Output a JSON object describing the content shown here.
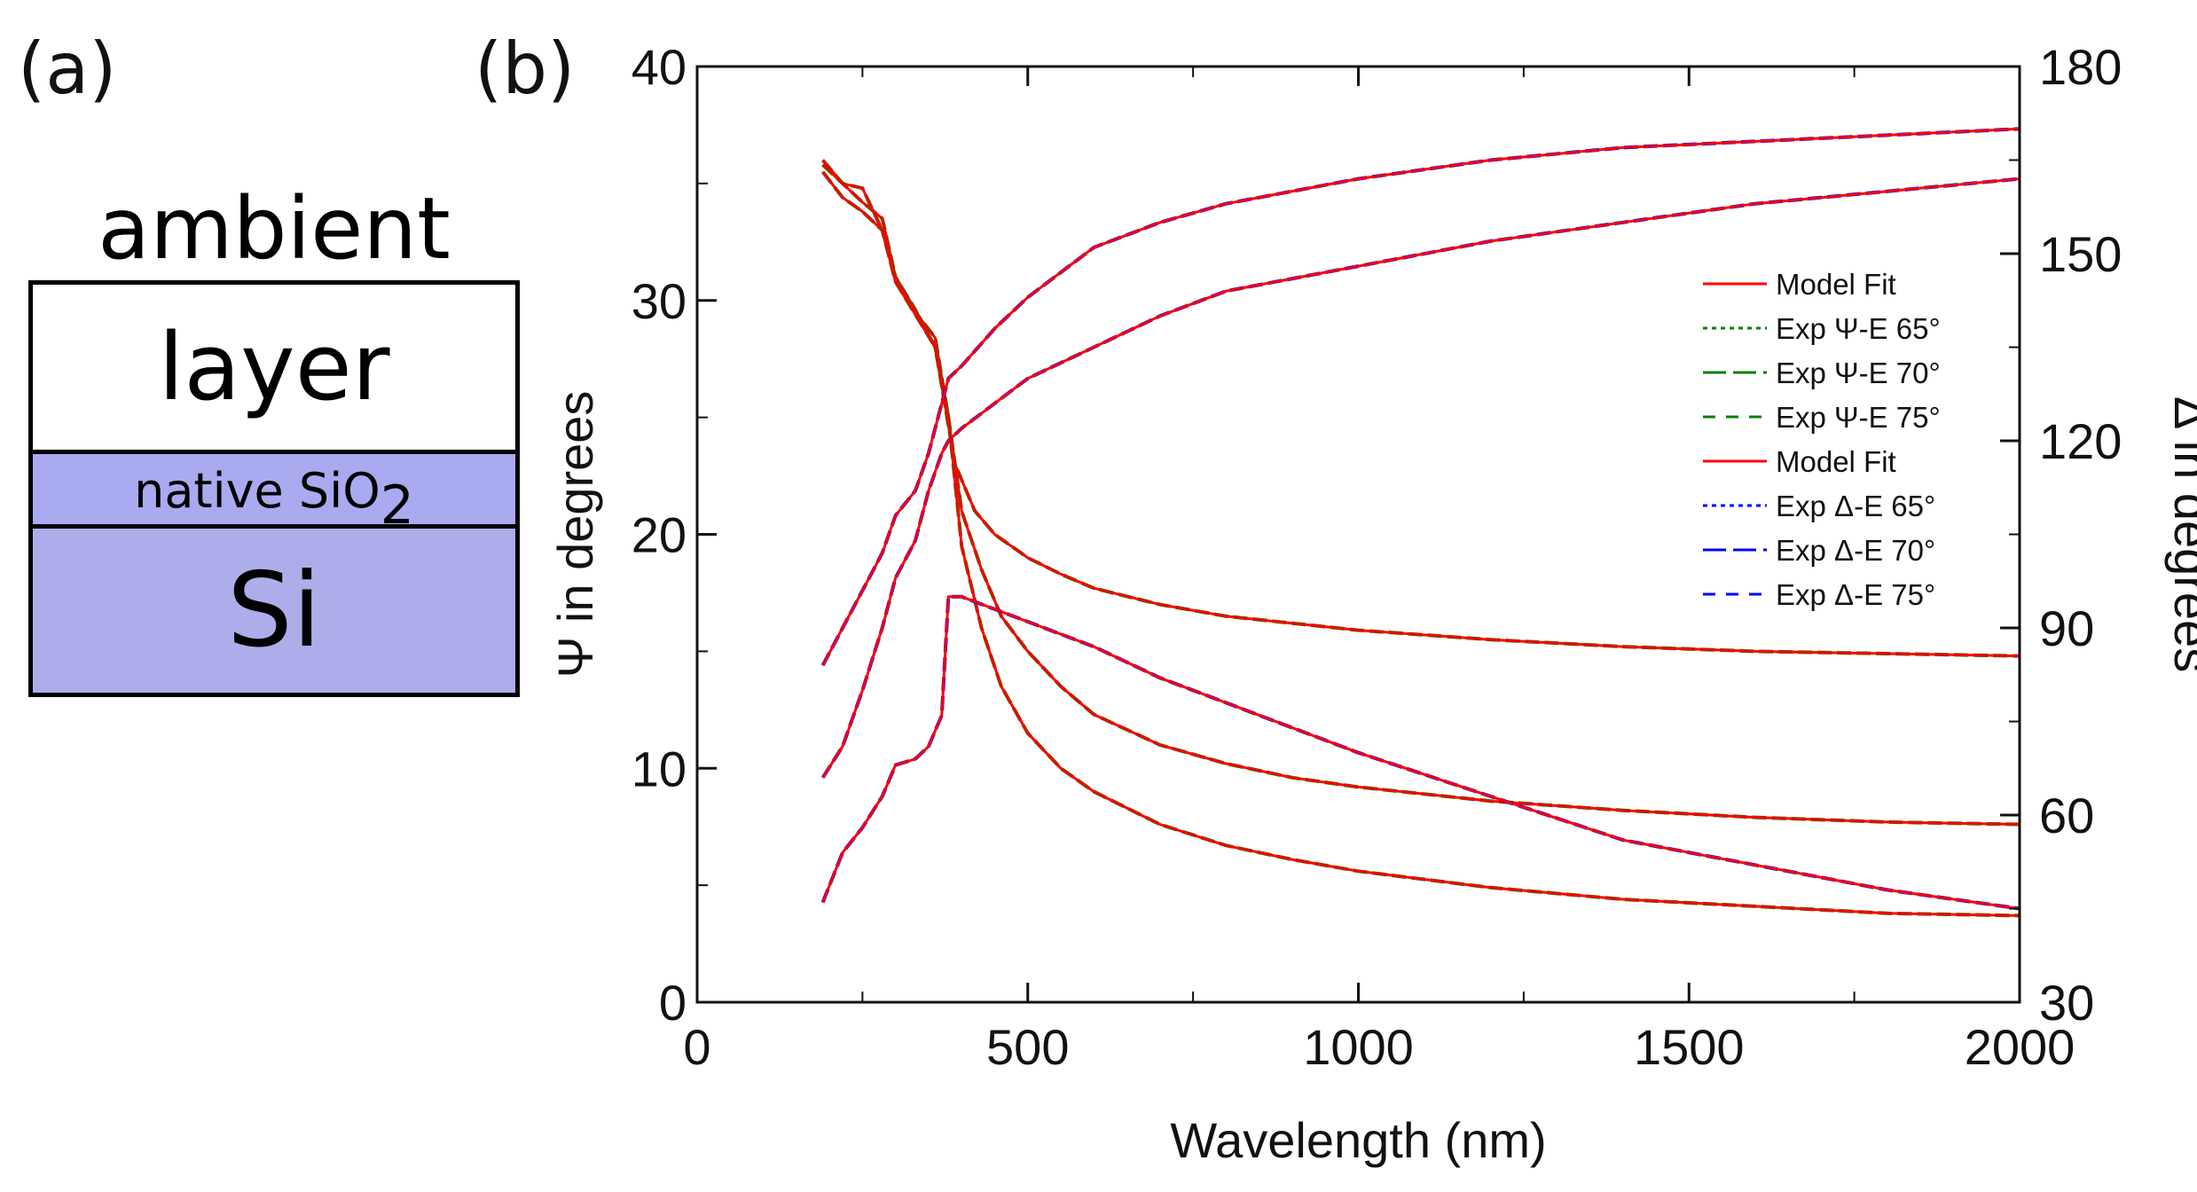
{
  "panel_a": {
    "label": "(a)",
    "ambient": "ambient",
    "layer": "layer",
    "sio2_prefix": "native SiO",
    "sio2_sub": "2",
    "si": "Si",
    "colors": {
      "sio2": "#aaaaf0",
      "si": "#adaee9"
    }
  },
  "panel_b": {
    "label": "(b)"
  },
  "chart_data": {
    "type": "line",
    "xlabel": "Wavelength (nm)",
    "ylabel": "Ψ in degrees",
    "y2label": "Δ in degrees",
    "xlim": [
      0,
      2000
    ],
    "ylim": [
      0,
      40
    ],
    "y2lim": [
      30,
      180
    ],
    "xticks": [
      0,
      500,
      1000,
      1500,
      2000
    ],
    "yticks": [
      0,
      10,
      20,
      30,
      40
    ],
    "y2ticks": [
      30,
      60,
      90,
      120,
      150,
      180
    ],
    "legend": [
      {
        "label": "Model Fit",
        "color": "#ff0000",
        "style": "solid"
      },
      {
        "label": "Exp Ψ-E 65°",
        "color": "#008000",
        "style": "dot"
      },
      {
        "label": "Exp Ψ-E 70°",
        "color": "#008000",
        "style": "longdash"
      },
      {
        "label": "Exp Ψ-E 75°",
        "color": "#008000",
        "style": "dash"
      },
      {
        "label": "Model Fit",
        "color": "#ff0000",
        "style": "solid"
      },
      {
        "label": "Exp Δ-E 65°",
        "color": "#0000ff",
        "style": "dot"
      },
      {
        "label": "Exp Δ-E 70°",
        "color": "#0000ff",
        "style": "longdash"
      },
      {
        "label": "Exp Δ-E 75°",
        "color": "#0000ff",
        "style": "dash"
      }
    ],
    "series": [
      {
        "name": "Ψ 65°",
        "axis": "left",
        "color": "#008000",
        "x": [
          190,
          220,
          250,
          280,
          300,
          330,
          360,
          390,
          420,
          450,
          500,
          550,
          600,
          700,
          800,
          900,
          1000,
          1200,
          1400,
          1600,
          1800,
          2000
        ],
        "y": [
          36.0,
          35.0,
          34.8,
          33.0,
          31.0,
          29.6,
          28.0,
          23.0,
          21.0,
          20.0,
          19.0,
          18.3,
          17.7,
          17.0,
          16.5,
          16.2,
          15.9,
          15.5,
          15.2,
          15.0,
          14.9,
          14.8
        ]
      },
      {
        "name": "Ψ 70°",
        "axis": "left",
        "color": "#008000",
        "x": [
          190,
          220,
          250,
          280,
          300,
          330,
          360,
          380,
          400,
          430,
          460,
          500,
          550,
          600,
          700,
          800,
          900,
          1000,
          1200,
          1400,
          1600,
          1800,
          2000
        ],
        "y": [
          35.8,
          35.0,
          34.2,
          33.5,
          31.0,
          29.5,
          28.4,
          25.0,
          21.0,
          18.5,
          16.5,
          15.0,
          13.5,
          12.3,
          11.0,
          10.2,
          9.6,
          9.2,
          8.6,
          8.2,
          7.9,
          7.7,
          7.6
        ]
      },
      {
        "name": "Ψ 75°",
        "axis": "left",
        "color": "#008000",
        "x": [
          190,
          220,
          250,
          280,
          300,
          330,
          360,
          380,
          400,
          430,
          460,
          500,
          550,
          600,
          700,
          800,
          900,
          1000,
          1200,
          1400,
          1600,
          1800,
          2000
        ],
        "y": [
          35.5,
          34.4,
          33.8,
          33.0,
          30.8,
          29.4,
          28.0,
          25.0,
          19.5,
          16.0,
          13.5,
          11.5,
          10.0,
          9.0,
          7.6,
          6.7,
          6.1,
          5.6,
          4.9,
          4.4,
          4.1,
          3.8,
          3.7
        ]
      },
      {
        "name": "Δ 65°",
        "axis": "right",
        "color": "#0000ff",
        "x": [
          190,
          220,
          250,
          280,
          300,
          330,
          350,
          370,
          380,
          400,
          450,
          500,
          600,
          700,
          800,
          1000,
          1200,
          1400,
          1600,
          1800,
          2000
        ],
        "y": [
          46,
          54,
          58,
          63,
          68,
          69,
          71,
          76,
          95,
          95,
          93,
          91,
          87,
          82,
          78,
          70,
          63,
          56,
          52,
          48,
          45
        ]
      },
      {
        "name": "Δ 70°",
        "axis": "right",
        "color": "#0000ff",
        "x": [
          190,
          220,
          250,
          280,
          300,
          330,
          350,
          370,
          380,
          400,
          450,
          500,
          600,
          700,
          800,
          1000,
          1200,
          1400,
          1600,
          1800,
          2000
        ],
        "y": [
          66,
          71,
          80,
          90,
          98,
          104,
          112,
          118,
          120,
          122,
          126,
          130,
          135,
          140,
          144,
          148,
          152,
          155,
          158,
          160,
          162
        ]
      },
      {
        "name": "Δ 75°",
        "axis": "right",
        "color": "#0000ff",
        "x": [
          190,
          220,
          250,
          280,
          300,
          330,
          350,
          370,
          380,
          400,
          450,
          500,
          550,
          600,
          700,
          800,
          1000,
          1200,
          1400,
          1600,
          1800,
          2000
        ],
        "y": [
          84,
          90,
          96,
          102,
          108,
          112,
          118,
          126,
          130,
          132,
          138,
          143,
          147,
          151,
          155,
          158,
          162,
          165,
          167,
          168,
          169,
          170
        ]
      }
    ]
  }
}
